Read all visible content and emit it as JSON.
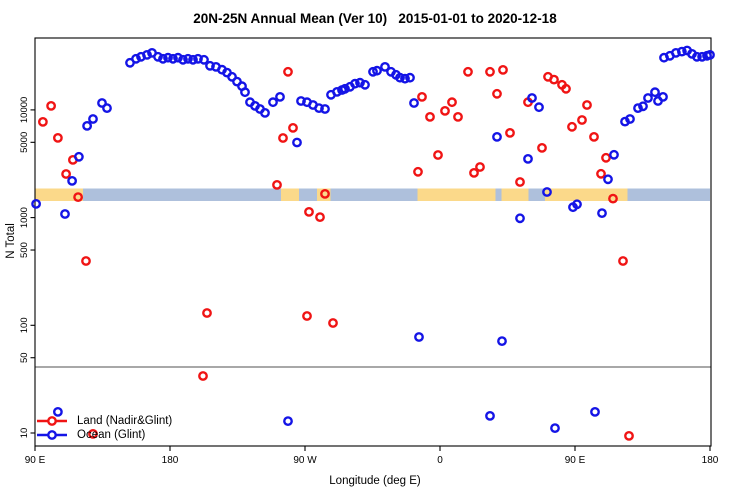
{
  "colors": {
    "land_series": "#f01414",
    "ocean_series": "#1414e6",
    "band_land": "#fbd98a",
    "band_ocean": "#aec0dc",
    "reference_line": "#8c8c8c",
    "axis": "#000000"
  },
  "chart_data": {
    "type": "scatter",
    "title": "20N-25N Annual Mean (Ver 10)   2015-01-01 to 2020-12-18",
    "xlabel": "Longitude (deg E)",
    "ylabel": "N Total",
    "legend_position": "bottom-left",
    "x_axis": {
      "range": [
        90,
        540
      ],
      "ticks": [
        90,
        180,
        270,
        360,
        450,
        540
      ],
      "tick_labels": [
        "90 E",
        "180",
        "90 W",
        "0",
        "90 E",
        "180"
      ]
    },
    "y_axis": {
      "scale": "log",
      "range": [
        8,
        40000
      ],
      "ticks": [
        10,
        50,
        100,
        500,
        1000,
        5000,
        10000
      ],
      "tick_labels": [
        "10",
        "50",
        "100",
        "500",
        "1000",
        "5000",
        "10000"
      ]
    },
    "reference_line": {
      "value": 41
    },
    "surface_band": {
      "description": "land/ocean surface strip at 20N-25N",
      "value_level": 1600,
      "segments": [
        {
          "from": 90,
          "to": 122,
          "surface": "land"
        },
        {
          "from": 122,
          "to": 254,
          "surface": "ocean"
        },
        {
          "from": 254,
          "to": 266,
          "surface": "land"
        },
        {
          "from": 266,
          "to": 278,
          "surface": "ocean"
        },
        {
          "from": 278,
          "to": 287,
          "surface": "land"
        },
        {
          "from": 287,
          "to": 345,
          "surface": "ocean"
        },
        {
          "from": 345,
          "to": 397,
          "surface": "land"
        },
        {
          "from": 397,
          "to": 401,
          "surface": "ocean"
        },
        {
          "from": 401,
          "to": 419,
          "surface": "land"
        },
        {
          "from": 419,
          "to": 430,
          "surface": "ocean"
        },
        {
          "from": 430,
          "to": 485,
          "surface": "land"
        },
        {
          "from": 485,
          "to": 540,
          "surface": "ocean"
        }
      ]
    },
    "series": [
      {
        "name": "Land (Nadir&Glint)",
        "color_key": "land_series",
        "points": [
          [
            95.3,
            7730
          ],
          [
            100.7,
            10900
          ],
          [
            105.3,
            5500
          ],
          [
            110.7,
            2540
          ],
          [
            115.3,
            3430
          ],
          [
            118.7,
            1550
          ],
          [
            124,
            395
          ],
          [
            128.7,
            9.8
          ],
          [
            202,
            33.8
          ],
          [
            204.7,
            130
          ],
          [
            251.3,
            2010
          ],
          [
            255.3,
            5480
          ],
          [
            258.7,
            22600
          ],
          [
            262,
            6800
          ],
          [
            271.3,
            122
          ],
          [
            272.7,
            1130
          ],
          [
            280,
            1010
          ],
          [
            283.3,
            1660
          ],
          [
            288.7,
            105
          ],
          [
            345.3,
            2660
          ],
          [
            348,
            13200
          ],
          [
            353.3,
            8610
          ],
          [
            358.7,
            3810
          ],
          [
            363.3,
            9780
          ],
          [
            368,
            11800
          ],
          [
            372,
            8610
          ],
          [
            378.7,
            22600
          ],
          [
            382.7,
            2600
          ],
          [
            386.7,
            2950
          ],
          [
            393.3,
            22600
          ],
          [
            398,
            14100
          ],
          [
            402,
            23500
          ],
          [
            406.7,
            6110
          ],
          [
            413.3,
            2140
          ],
          [
            418.7,
            11800
          ],
          [
            428,
            4440
          ],
          [
            432,
            20300
          ],
          [
            436,
            19100
          ],
          [
            441.3,
            17100
          ],
          [
            444,
            15700
          ],
          [
            448,
            6970
          ],
          [
            454.7,
            8060
          ],
          [
            458,
            11100
          ],
          [
            462.7,
            5620
          ],
          [
            467.3,
            2550
          ],
          [
            470.7,
            3590
          ],
          [
            475.3,
            1500
          ],
          [
            482,
            395
          ],
          [
            486,
            9.4
          ]
        ]
      },
      {
        "name": "Ocean (Glint)",
        "color_key": "ocean_series",
        "points": [
          [
            90.7,
            1340
          ],
          [
            105.3,
            15.7
          ],
          [
            110,
            1080
          ],
          [
            114.7,
            2190
          ],
          [
            119.3,
            3670
          ],
          [
            124.7,
            7110
          ],
          [
            128.7,
            8240
          ],
          [
            134.7,
            11600
          ],
          [
            138,
            10400
          ],
          [
            153.3,
            27400
          ],
          [
            157.3,
            29800
          ],
          [
            160.7,
            31100
          ],
          [
            164.7,
            32400
          ],
          [
            168,
            33800
          ],
          [
            172,
            31100
          ],
          [
            175.3,
            29800
          ],
          [
            178.7,
            30500
          ],
          [
            182,
            29800
          ],
          [
            185.3,
            30500
          ],
          [
            188.7,
            29200
          ],
          [
            192,
            29800
          ],
          [
            195.3,
            29200
          ],
          [
            198.7,
            29800
          ],
          [
            202.7,
            29200
          ],
          [
            206.7,
            25700
          ],
          [
            210.7,
            25100
          ],
          [
            214.7,
            23600
          ],
          [
            218,
            22200
          ],
          [
            221.3,
            20300
          ],
          [
            224.7,
            18300
          ],
          [
            228,
            16600
          ],
          [
            230,
            14600
          ],
          [
            233.3,
            11800
          ],
          [
            236.7,
            10900
          ],
          [
            240,
            10200
          ],
          [
            243.3,
            9370
          ],
          [
            248.7,
            11800
          ],
          [
            253.3,
            13200
          ],
          [
            258.7,
            12.9
          ],
          [
            264.7,
            4980
          ],
          [
            267.3,
            12100
          ],
          [
            271.3,
            11800
          ],
          [
            275.3,
            11100
          ],
          [
            279.3,
            10400
          ],
          [
            283.3,
            10200
          ],
          [
            287.3,
            13800
          ],
          [
            291.3,
            14700
          ],
          [
            294.7,
            15300
          ],
          [
            296.7,
            15700
          ],
          [
            300,
            16400
          ],
          [
            303.3,
            17500
          ],
          [
            306.7,
            17900
          ],
          [
            310,
            17100
          ],
          [
            315.3,
            22600
          ],
          [
            318,
            23100
          ],
          [
            323.3,
            25100
          ],
          [
            327.3,
            22600
          ],
          [
            330.7,
            21200
          ],
          [
            333.3,
            19900
          ],
          [
            336.7,
            19500
          ],
          [
            340,
            19900
          ],
          [
            342.7,
            11600
          ],
          [
            346,
            77.8
          ],
          [
            393.3,
            14.4
          ],
          [
            398,
            5620
          ],
          [
            401.3,
            71.3
          ],
          [
            413.3,
            985
          ],
          [
            418.7,
            3510
          ],
          [
            421.3,
            12900
          ],
          [
            426,
            10600
          ],
          [
            431.3,
            1730
          ],
          [
            436.7,
            11.1
          ],
          [
            448.7,
            1250
          ],
          [
            451.3,
            1330
          ],
          [
            463.3,
            15.7
          ],
          [
            468,
            1100
          ],
          [
            472,
            2270
          ],
          [
            476,
            3830
          ],
          [
            483.3,
            7780
          ],
          [
            486.7,
            8240
          ],
          [
            492,
            10400
          ],
          [
            495.3,
            10800
          ],
          [
            498.7,
            12900
          ],
          [
            503.3,
            14600
          ],
          [
            505.3,
            12100
          ],
          [
            508.7,
            13200
          ],
          [
            509.3,
            30500
          ],
          [
            513.3,
            31800
          ],
          [
            517.3,
            33800
          ],
          [
            521.3,
            34800
          ],
          [
            524.7,
            35600
          ],
          [
            528,
            33100
          ],
          [
            531.3,
            31100
          ],
          [
            534.7,
            31100
          ],
          [
            538,
            31800
          ],
          [
            540,
            32400
          ]
        ]
      }
    ]
  }
}
